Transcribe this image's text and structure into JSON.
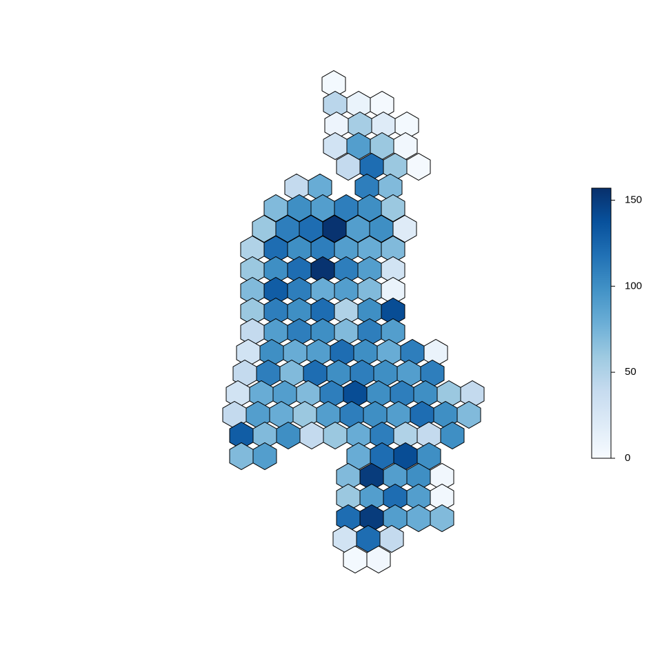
{
  "chart_data": {
    "type": "choropleth",
    "colors": [
      "#f7fbff",
      "#deebf7",
      "#c6dbef",
      "#9ecae1",
      "#6baed6",
      "#4292c6",
      "#2171b5",
      "#08519c",
      "#08306b"
    ],
    "zlim": [
      0,
      157
    ],
    "zticks": [
      0,
      50,
      100,
      150
    ],
    "values": [
      [
        3
      ],
      [
        45,
        10,
        2
      ],
      [
        8,
        55,
        20,
        3
      ],
      [
        30,
        90,
        60,
        5
      ],
      [
        40,
        120,
        60,
        2
      ],
      [
        40,
        80,
        null,
        110,
        70
      ],
      [
        70,
        100,
        90,
        110,
        100,
        60
      ],
      [
        60,
        110,
        120,
        155,
        90,
        100,
        20
      ],
      [
        50,
        120,
        100,
        110,
        90,
        80,
        70
      ],
      [
        60,
        100,
        120,
        155,
        110,
        90,
        30
      ],
      [
        70,
        130,
        110,
        80,
        90,
        70,
        10
      ],
      [
        60,
        110,
        100,
        120,
        50,
        100,
        140
      ],
      [
        40,
        90,
        110,
        100,
        70,
        110,
        90
      ],
      [
        30,
        100,
        80,
        90,
        120,
        100,
        80,
        110,
        10
      ],
      [
        40,
        110,
        70,
        120,
        100,
        110,
        100,
        90,
        110
      ],
      [
        30,
        80,
        90,
        70,
        110,
        140,
        100,
        110,
        100,
        60,
        40
      ],
      [
        40,
        90,
        80,
        60,
        90,
        110,
        100,
        90,
        120,
        100,
        70
      ],
      [
        130,
        70,
        100,
        40,
        60,
        80,
        110,
        50,
        40,
        100
      ],
      [
        70,
        90,
        null,
        null,
        null,
        80,
        120,
        140,
        100
      ],
      [
        70,
        150,
        90,
        100,
        5
      ],
      [
        60,
        90,
        120,
        90,
        5
      ],
      [
        120,
        150,
        90,
        80,
        70
      ],
      [
        30,
        120,
        40
      ],
      [
        3,
        5
      ]
    ]
  }
}
